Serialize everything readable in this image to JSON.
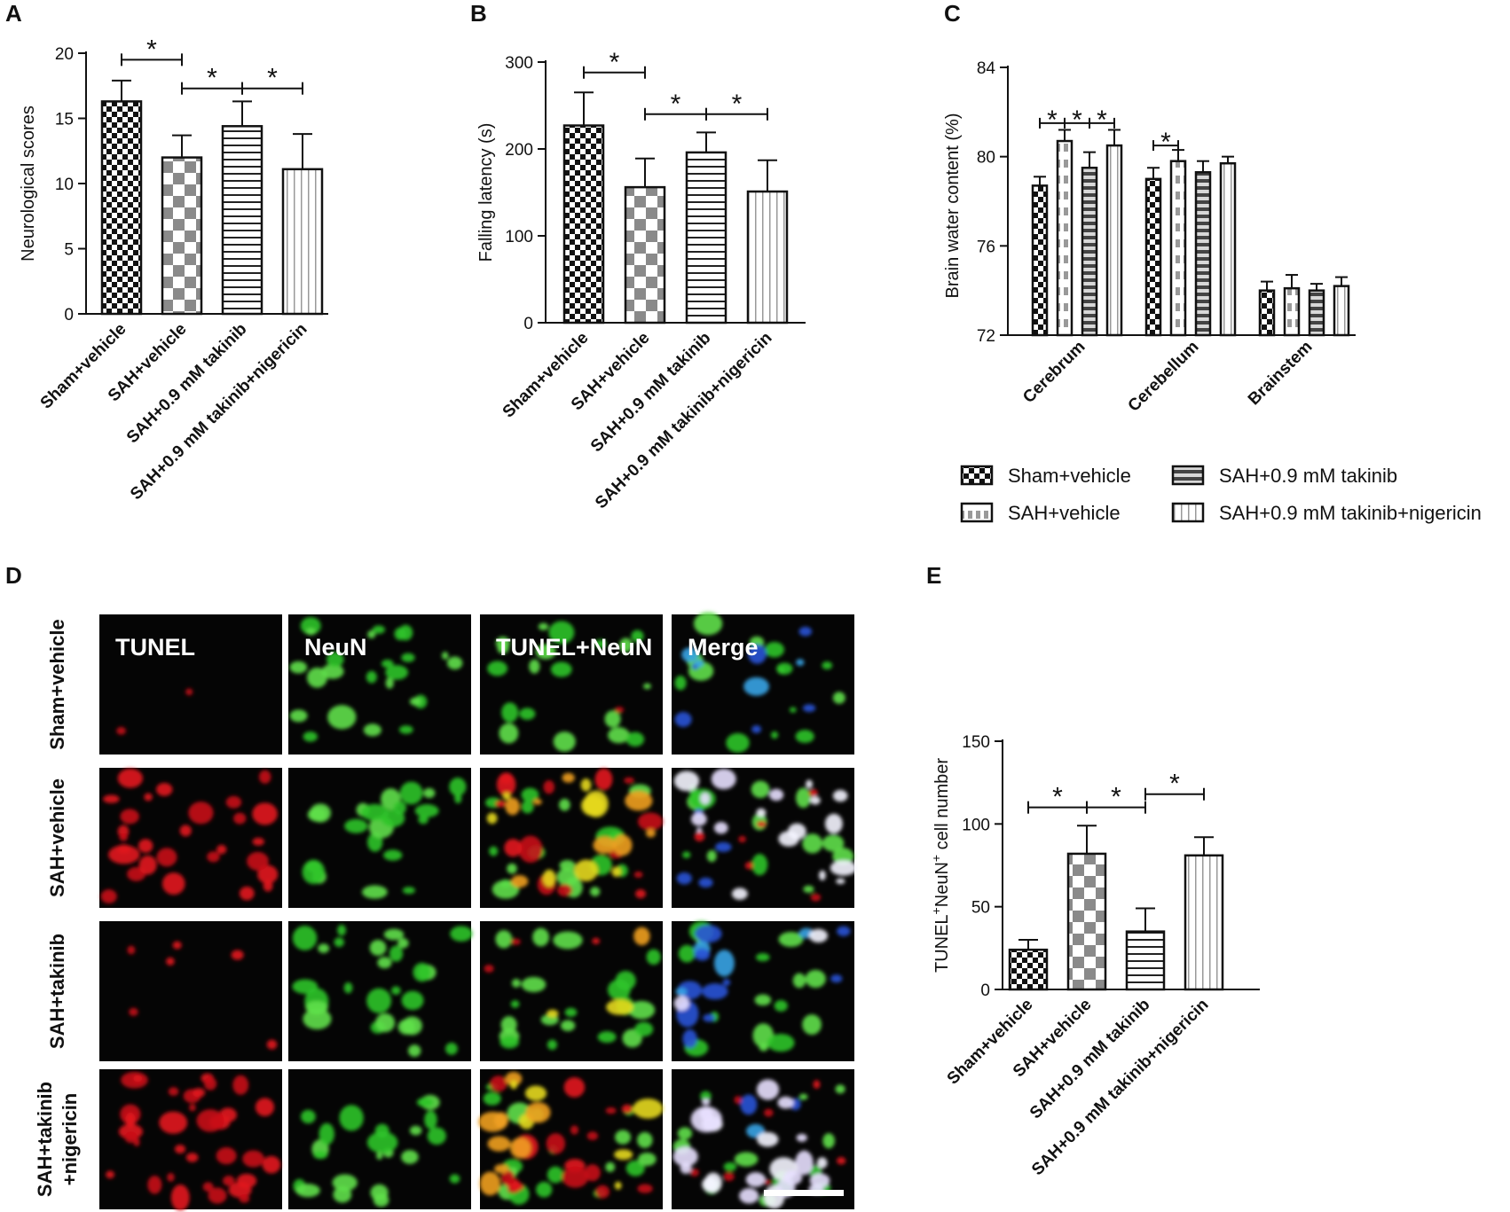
{
  "panels": {
    "A": "A",
    "B": "B",
    "C": "C",
    "D": "D",
    "E": "E"
  },
  "colors": {
    "axis": "#111111",
    "hatch": "#111111",
    "checker_gray": "#8a8a8a",
    "micro_bg": "#050505",
    "tunel_red": "#e3141c",
    "neun_green": "#2ec42a",
    "merge_blue": "#2a53d6",
    "yellow": "#e6d91c",
    "scalebar": "#ffffff"
  },
  "chart_data": [
    {
      "id": "A",
      "type": "bar",
      "categories": [
        "Sham+vehicle",
        "SAH+vehicle",
        "SAH+0.9 mM takinib",
        "SAH+0.9 mM takinib+nigericin"
      ],
      "values": [
        16.3,
        12.0,
        14.4,
        11.1
      ],
      "errors": [
        1.6,
        1.7,
        1.9,
        2.7
      ],
      "patterns": [
        "checker-small",
        "checker-large",
        "hlines",
        "vlines"
      ],
      "ylabel": "Neurological scores",
      "ylim": [
        0,
        20
      ],
      "yticks": [
        0,
        5,
        10,
        15,
        20
      ],
      "significance": [
        {
          "from": 0,
          "to": 1,
          "y": 19.5,
          "label": "*"
        },
        {
          "from": 1,
          "to": 2,
          "y": 17.3,
          "label": "*"
        },
        {
          "from": 2,
          "to": 3,
          "y": 17.3,
          "label": "*"
        }
      ]
    },
    {
      "id": "B",
      "type": "bar",
      "categories": [
        "Sham+vehicle",
        "SAH+vehicle",
        "SAH+0.9 mM takinib",
        "SAH+0.9 mM takinib+nigericin"
      ],
      "values": [
        227,
        156,
        196,
        151
      ],
      "errors": [
        38,
        33,
        23,
        36
      ],
      "patterns": [
        "checker-small",
        "checker-large",
        "hlines",
        "vlines"
      ],
      "ylabel": "Falling latency (s)",
      "ylim": [
        0,
        300
      ],
      "yticks": [
        0,
        100,
        200,
        300
      ],
      "significance": [
        {
          "from": 0,
          "to": 1,
          "y": 288,
          "label": "*"
        },
        {
          "from": 1,
          "to": 2,
          "y": 240,
          "label": "*"
        },
        {
          "from": 2,
          "to": 3,
          "y": 240,
          "label": "*"
        }
      ]
    },
    {
      "id": "C",
      "type": "bar",
      "categories": [
        "Cerebrum",
        "Cerebellum",
        "Brainstem"
      ],
      "series": [
        {
          "name": "Sham+vehicle",
          "pattern": "checker-small",
          "values": [
            78.7,
            79.0,
            74.0
          ],
          "errors": [
            0.4,
            0.5,
            0.4
          ]
        },
        {
          "name": "SAH+vehicle",
          "pattern": "vdash",
          "values": [
            80.7,
            79.8,
            74.1
          ],
          "errors": [
            0.5,
            0.5,
            0.6
          ]
        },
        {
          "name": "SAH+0.9 mM takinib",
          "pattern": "hlines-dark",
          "values": [
            79.5,
            79.3,
            74.0
          ],
          "errors": [
            0.7,
            0.5,
            0.3
          ]
        },
        {
          "name": "SAH+0.9 mM takinib+nigericin",
          "pattern": "vlines",
          "values": [
            80.5,
            79.7,
            74.2
          ],
          "errors": [
            0.7,
            0.3,
            0.4
          ]
        }
      ],
      "ylabel": "Brain water content (%)",
      "ylim": [
        72,
        84
      ],
      "yticks": [
        72,
        76,
        80,
        84
      ],
      "significance": [
        {
          "group": 0,
          "from": 0,
          "to": 1,
          "y": 81.5,
          "label": "*"
        },
        {
          "group": 0,
          "from": 1,
          "to": 2,
          "y": 81.5,
          "label": "*"
        },
        {
          "group": 0,
          "from": 2,
          "to": 3,
          "y": 81.5,
          "label": "*"
        },
        {
          "group": 1,
          "from": 0,
          "to": 1,
          "y": 80.5,
          "label": "*"
        }
      ]
    },
    {
      "id": "E",
      "type": "bar",
      "categories": [
        "Sham+vehicle",
        "SAH+vehicle",
        "SAH+0.9 mM takinib",
        "SAH+0.9 mM takinib+nigericin"
      ],
      "values": [
        24,
        82,
        35,
        81
      ],
      "errors": [
        6,
        17,
        14,
        11
      ],
      "patterns": [
        "checker-small",
        "checker-large",
        "hlines",
        "vlines"
      ],
      "ylabel_main": "TUNEL",
      "ylabel_sup1": "+",
      "ylabel_mid": "NeuN",
      "ylabel_sup2": "+",
      "ylabel_tail": " cell number",
      "ylim": [
        0,
        150
      ],
      "yticks": [
        0,
        50,
        100,
        150
      ],
      "significance": [
        {
          "from": 0,
          "to": 1,
          "y": 110,
          "label": "*"
        },
        {
          "from": 1,
          "to": 2,
          "y": 110,
          "label": "*"
        },
        {
          "from": 2,
          "to": 3,
          "y": 118,
          "label": "*"
        }
      ]
    }
  ],
  "micrographs": {
    "columns": [
      "TUNEL",
      "NeuN",
      "TUNEL+NeuN",
      "Merge"
    ],
    "rows": [
      {
        "label": "Sham+vehicle",
        "red": 2,
        "green": 24,
        "yellow": 0,
        "white": 0,
        "blue": 10
      },
      {
        "label": "SAH+vehicle",
        "red": 28,
        "green": 22,
        "yellow": 16,
        "white": 18,
        "blue": 4
      },
      {
        "label": "SAH+takinib",
        "red": 6,
        "green": 26,
        "yellow": 3,
        "white": 2,
        "blue": 14
      },
      {
        "label": [
          "SAH+takinib",
          "+nigericin"
        ],
        "red": 34,
        "green": 22,
        "yellow": 14,
        "white": 22,
        "blue": 3
      }
    ]
  }
}
